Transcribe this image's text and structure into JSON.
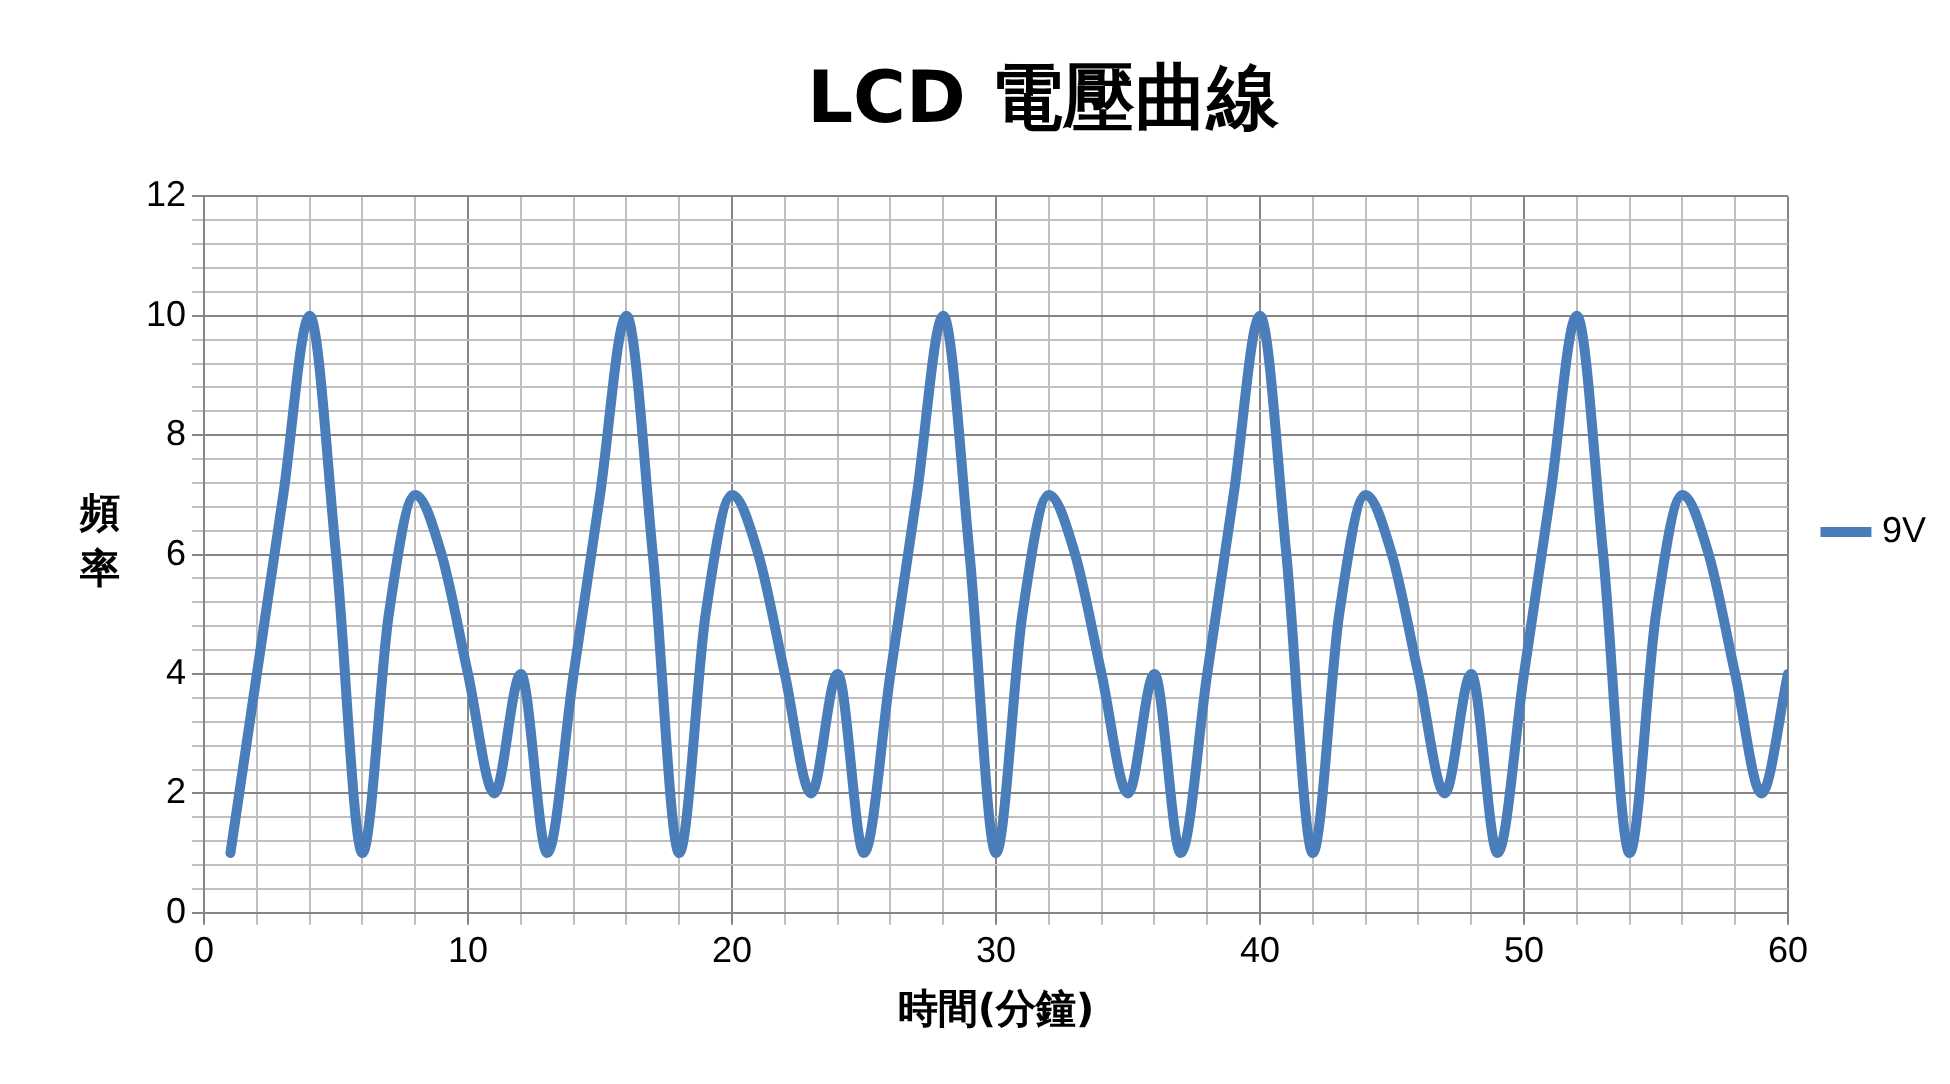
{
  "chart_data": {
    "type": "line",
    "title": "LCD 電壓曲線",
    "xlabel": "時間(分鐘)",
    "ylabel": "頻率",
    "x": [
      1,
      2,
      3,
      4,
      5,
      6,
      7,
      8,
      9,
      10,
      11,
      12,
      13,
      14,
      15,
      16,
      17,
      18,
      19,
      20,
      21,
      22,
      23,
      24,
      25,
      26,
      27,
      28,
      29,
      30,
      31,
      32,
      33,
      34,
      35,
      36,
      37,
      38,
      39,
      40,
      41,
      42,
      43,
      44,
      45,
      46,
      47,
      48,
      49,
      50,
      51,
      52,
      53,
      54,
      55,
      56,
      57,
      58,
      59,
      60
    ],
    "series": [
      {
        "name": "9V",
        "color": "#4a7ebb",
        "values": [
          1,
          4,
          7,
          10,
          6,
          1,
          5,
          7,
          6,
          4,
          2,
          4,
          1,
          4,
          7,
          10,
          6,
          1,
          5,
          7,
          6,
          4,
          2,
          4,
          1,
          4,
          7,
          10,
          6,
          1,
          5,
          7,
          6,
          4,
          2,
          4,
          1,
          4,
          7,
          10,
          6,
          1,
          5,
          7,
          6,
          4,
          2,
          4,
          1,
          4,
          7,
          10,
          6,
          1,
          5,
          7,
          6,
          4,
          2,
          4
        ]
      }
    ],
    "xlim": [
      0,
      60
    ],
    "ylim": [
      0,
      12
    ],
    "xticks": [
      0,
      {
        "value": 2,
        "label": null
      },
      {
        "value": 4,
        "label": null
      },
      {
        "value": 6,
        "label": null
      },
      {
        "value": 8,
        "label": null
      },
      10,
      {
        "value": 12,
        "label": null
      },
      {
        "value": 14,
        "label": null
      },
      {
        "value": 16,
        "label": null
      },
      {
        "value": 18,
        "label": null
      },
      20,
      {
        "value": 22,
        "label": null
      },
      {
        "value": 24,
        "label": null
      },
      {
        "value": 26,
        "label": null
      },
      {
        "value": 28,
        "label": null
      },
      30,
      {
        "value": 32,
        "label": null
      },
      {
        "value": 34,
        "label": null
      },
      {
        "value": 36,
        "label": null
      },
      {
        "value": 38,
        "label": null
      },
      40,
      {
        "value": 42,
        "label": null
      },
      {
        "value": 44,
        "label": null
      },
      {
        "value": 46,
        "label": null
      },
      {
        "value": 48,
        "label": null
      },
      50,
      {
        "value": 52,
        "label": null
      },
      {
        "value": 54,
        "label": null
      },
      {
        "value": 56,
        "label": null
      },
      {
        "value": 58,
        "label": null
      },
      60
    ],
    "yticks": [
      0,
      {
        "value": 0.4,
        "label": null
      },
      {
        "value": 0.8,
        "label": null
      },
      {
        "value": 1.2,
        "label": null
      },
      {
        "value": 1.6,
        "label": null
      },
      2,
      {
        "value": 2.4,
        "label": null
      },
      {
        "value": 2.8,
        "label": null
      },
      {
        "value": 3.2,
        "label": null
      },
      {
        "value": 3.6,
        "label": null
      },
      4,
      {
        "value": 4.4,
        "label": null
      },
      {
        "value": 4.8,
        "label": null
      },
      {
        "value": 5.2,
        "label": null
      },
      {
        "value": 5.6,
        "label": null
      },
      6,
      {
        "value": 6.4,
        "label": null
      },
      {
        "value": 6.8,
        "label": null
      },
      {
        "value": 7.2,
        "label": null
      },
      {
        "value": 7.6,
        "label": null
      },
      8,
      {
        "value": 8.4,
        "label": null
      },
      {
        "value": 8.8,
        "label": null
      },
      {
        "value": 9.2,
        "label": null
      },
      {
        "value": 9.6,
        "label": null
      },
      10,
      {
        "value": 10.4,
        "label": null
      },
      {
        "value": 10.8,
        "label": null
      },
      {
        "value": 11.2,
        "label": null
      },
      {
        "value": 11.6,
        "label": null
      },
      12
    ],
    "grid": true,
    "legend": "right",
    "marker": "none",
    "line_style": "solid"
  }
}
